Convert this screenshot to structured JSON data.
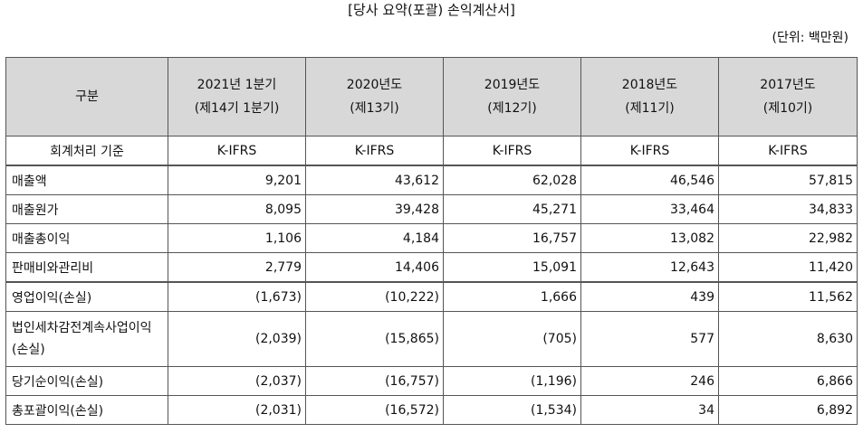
{
  "title": "[당사 요약(포괄) 손익계산서]",
  "unit": "(단위: 백만원)",
  "header": {
    "corner": "구분",
    "columns": [
      {
        "line1": "2021년 1분기",
        "line2": "(제14기 1분기)"
      },
      {
        "line1": "2020년도",
        "line2": "(제13기)"
      },
      {
        "line1": "2019년도",
        "line2": "(제12기)"
      },
      {
        "line1": "2018년도",
        "line2": "(제11기)"
      },
      {
        "line1": "2017년도",
        "line2": "(제10기)"
      }
    ]
  },
  "standard": {
    "label": "회계처리 기준",
    "values": [
      "K-IFRS",
      "K-IFRS",
      "K-IFRS",
      "K-IFRS",
      "K-IFRS"
    ]
  },
  "rows": [
    {
      "label": "매출액",
      "values": [
        "9,201",
        "43,612",
        "62,028",
        "46,546",
        "57,815"
      ]
    },
    {
      "label": "매출원가",
      "values": [
        "8,095",
        "39,428",
        "45,271",
        "33,464",
        "34,833"
      ]
    },
    {
      "label": "매출총이익",
      "values": [
        "1,106",
        "4,184",
        "16,757",
        "13,082",
        "22,982"
      ]
    },
    {
      "label": "판매비와관리비",
      "values": [
        "2,779",
        "14,406",
        "15,091",
        "12,643",
        "11,420"
      ]
    },
    {
      "label": "영업이익(손실)",
      "values": [
        "(1,673)",
        "(10,222)",
        "1,666",
        "439",
        "11,562"
      ]
    },
    {
      "label": "법인세차감전계속사업이익(손실)",
      "values": [
        "(2,039)",
        "(15,865)",
        "(705)",
        "577",
        "8,630"
      ]
    },
    {
      "label": "당기순이익(손실)",
      "values": [
        "(2,037)",
        "(16,757)",
        "(1,196)",
        "246",
        "6,866"
      ]
    },
    {
      "label": "총포괄이익(손실)",
      "values": [
        "(2,031)",
        "(16,572)",
        "(1,534)",
        "34",
        "6,892"
      ]
    }
  ]
}
